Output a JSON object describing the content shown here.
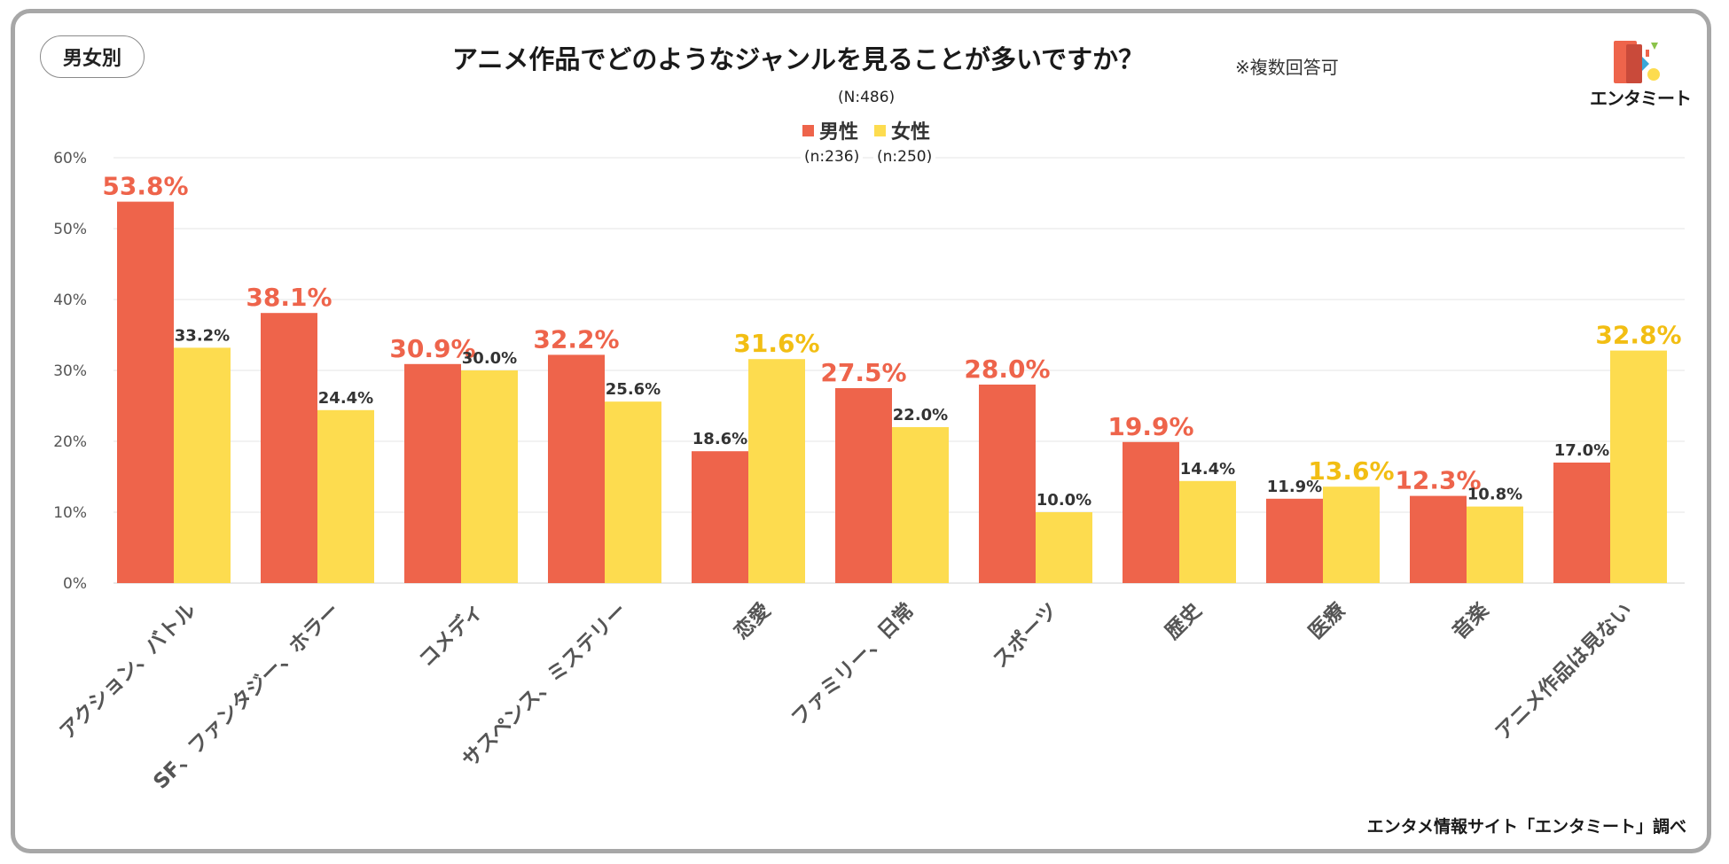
{
  "badge": "男女別",
  "title": "アニメ作品でどのようなジャンルを見ることが多いですか？",
  "note": "※複数回答可",
  "total_n": "(N:486)",
  "logo_text": "エンタミート",
  "footer": "エンタメ情報サイト「エンタミート」調べ",
  "colors": {
    "male": "#EE644B",
    "female": "#FDDC4F",
    "female_highlight_text": "#F2BE13",
    "grid": "#e6e6e6",
    "axis_text": "#555555"
  },
  "chart_data": {
    "type": "bar",
    "title": "アニメ作品でどのようなジャンルを見ることが多いですか？",
    "ylim": [
      0,
      60
    ],
    "yticks": [
      0,
      10,
      20,
      30,
      40,
      50,
      60
    ],
    "ytick_labels": [
      "0%",
      "10%",
      "20%",
      "30%",
      "40%",
      "50%",
      "60%"
    ],
    "categories": [
      "アクション、バトル",
      "SF、ファンタジー、ホラー",
      "コメディ",
      "サスペンス、ミステリー",
      "恋愛",
      "ファミリー、日常",
      "スポーツ",
      "歴史",
      "医療",
      "音楽",
      "アニメ作品は見ない"
    ],
    "series": [
      {
        "name": "男性",
        "n": "(n:236)",
        "color": "#EE644B",
        "values": [
          53.8,
          38.1,
          30.9,
          32.2,
          18.6,
          27.5,
          28.0,
          19.9,
          11.9,
          12.3,
          17.0
        ],
        "labels": [
          "53.8%",
          "38.1%",
          "30.9%",
          "32.2%",
          "18.6%",
          "27.5%",
          "28.0%",
          "19.9%",
          "11.9%",
          "12.3%",
          "17.0%"
        ]
      },
      {
        "name": "女性",
        "n": "(n:250)",
        "color": "#FDDC4F",
        "values": [
          33.2,
          24.4,
          30.0,
          25.6,
          31.6,
          22.0,
          10.0,
          14.4,
          13.6,
          10.8,
          32.8
        ],
        "labels": [
          "33.2%",
          "24.4%",
          "30.0%",
          "25.6%",
          "31.6%",
          "22.0%",
          "10.0%",
          "14.4%",
          "13.6%",
          "10.8%",
          "32.8%"
        ]
      }
    ]
  }
}
